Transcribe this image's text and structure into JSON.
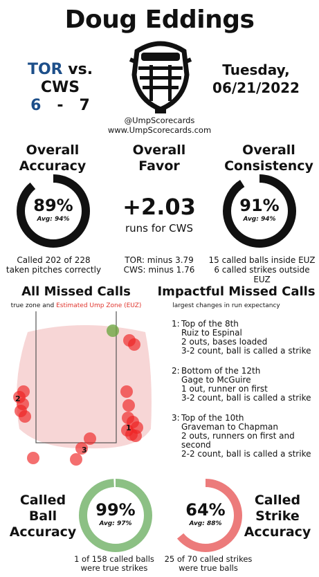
{
  "umpire": "Doug Eddings",
  "game": {
    "away_team": "TOR",
    "vs": "vs.",
    "home_team": "CWS",
    "away_score": "6",
    "dash": "-",
    "home_score": "7",
    "day": "Tuesday,",
    "date": "06/21/2022"
  },
  "source": {
    "handle": "@UmpScorecards",
    "site": "www.UmpScorecards.com"
  },
  "overall_accuracy": {
    "title_line1": "Overall",
    "title_line2": "Accuracy",
    "value": "89%",
    "avg": "Avg: 94%",
    "fraction": 0.89,
    "note_line1": "Called 202 of 228",
    "note_line2": "taken pitches correctly"
  },
  "overall_favor": {
    "title_line1": "Overall",
    "title_line2": "Favor",
    "value": "+2.03",
    "sub": "runs for CWS",
    "note_line1": "TOR: minus 3.79",
    "note_line2": "CWS: minus 1.76"
  },
  "overall_consistency": {
    "title_line1": "Overall",
    "title_line2": "Consistency",
    "value": "91%",
    "avg": "Avg: 94%",
    "fraction": 0.91,
    "note_line1": "15 called balls inside EUZ",
    "note_line2": "6 called strikes outside EUZ"
  },
  "missed_calls": {
    "title": "All Missed Calls",
    "sub_prefix": "true zone and",
    "sub_euz": "Estimated Ump Zone (EUZ)",
    "labels": [
      "1",
      "2",
      "3"
    ]
  },
  "impactful": {
    "title": "Impactful Missed Calls",
    "sub": "largest changes in run expectancy",
    "calls": [
      {
        "num": "1:",
        "lines": [
          "Top of the 8th",
          "Ruiz to Espinal",
          "2 outs, bases loaded",
          "3-2 count, ball is called a strike"
        ]
      },
      {
        "num": "2:",
        "lines": [
          "Bottom of the 12th",
          "Gage to McGuire",
          "1 out, runner on first",
          "3-2 count, ball is called a strike"
        ]
      },
      {
        "num": "3:",
        "lines": [
          "Top of the 10th",
          "Graveman to Chapman",
          "2 outs, runners on first and second",
          "2-2 count, ball is called a strike"
        ]
      }
    ]
  },
  "called_ball": {
    "title_line1": "Called",
    "title_line2": "Ball",
    "title_line3": "Accuracy",
    "value": "99%",
    "avg": "Avg: 97%",
    "fraction": 0.99,
    "note_line1": "1 of 158 called balls",
    "note_line2": "were true strikes"
  },
  "called_strike": {
    "title_line1": "Called",
    "title_line2": "Strike",
    "title_line3": "Accuracy",
    "value": "64%",
    "avg": "Avg: 88%",
    "fraction": 0.64,
    "note_line1": "25 of 70 called strikes",
    "note_line2": "were true balls"
  },
  "colors": {
    "black_ring": "#111111",
    "ring_track": "#ffffff",
    "ball_ring": "#8cc084",
    "strike_ring": "#ec7b7b",
    "euz_fill": "#f7d6d6",
    "miss_dot": "#ee2222",
    "green_dot": "#6fa845",
    "tor_blue": "#1d4f8a",
    "euz_red": "#e0342c"
  }
}
